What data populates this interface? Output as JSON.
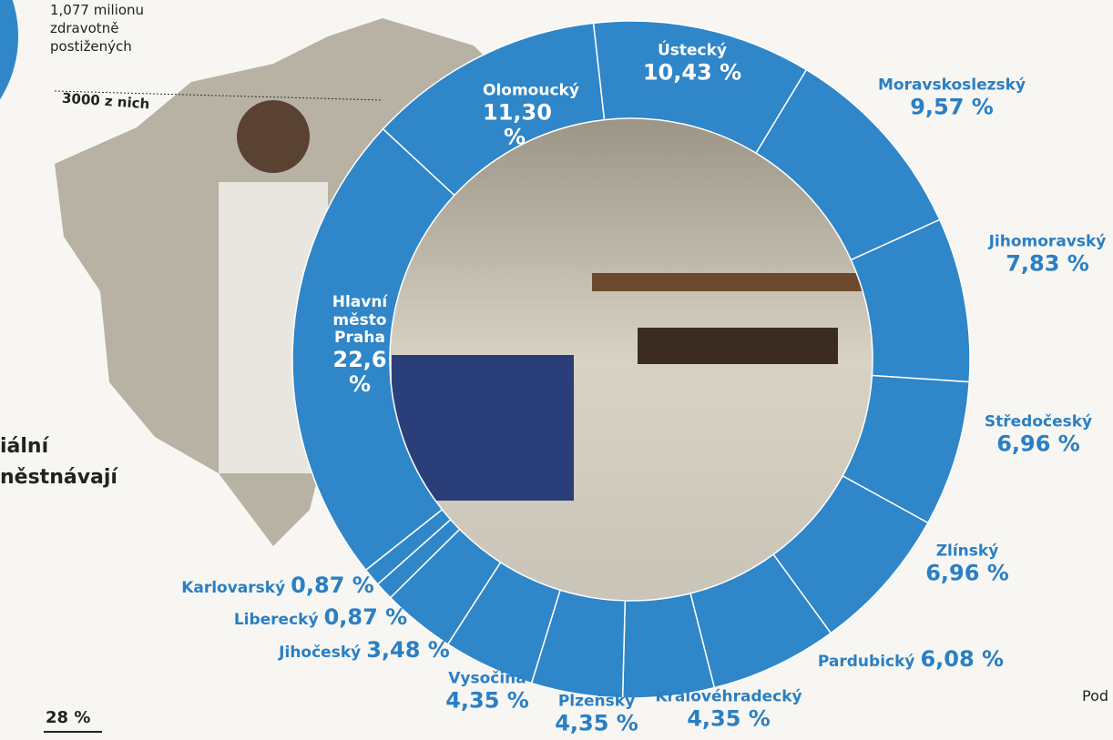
{
  "chart_data": {
    "type": "donut",
    "categories": [
      "Ústecký",
      "Moravskoslezský",
      "Jihomoravský",
      "Středočeský",
      "Zlínský",
      "Pardubický",
      "Královéhradecký",
      "Plzeňský",
      "Vysočina",
      "Jihočeský",
      "Liberecký",
      "Karlovarský",
      "Hlavní město Praha",
      "Olomoucký"
    ],
    "values": [
      10.43,
      9.57,
      7.83,
      6.96,
      6.96,
      6.08,
      4.35,
      4.35,
      4.35,
      3.48,
      0.87,
      0.87,
      22.6,
      11.3
    ],
    "value_labels": [
      "10,43 %",
      "9,57 %",
      "7,83 %",
      "6,96 %",
      "6,96 %",
      "6,08 %",
      "4,35 %",
      "4,35 %",
      "4,35 %",
      "3,48 %",
      "0,87 %",
      "0,87 %",
      "22,6 %",
      "11,30 %"
    ],
    "color": "#2f86c8",
    "annotations": [
      "1,077 milionu",
      "zdravotně",
      "postižených",
      "3000 z nich",
      "iální",
      "něstnávají",
      "28 %",
      "Pod"
    ]
  }
}
